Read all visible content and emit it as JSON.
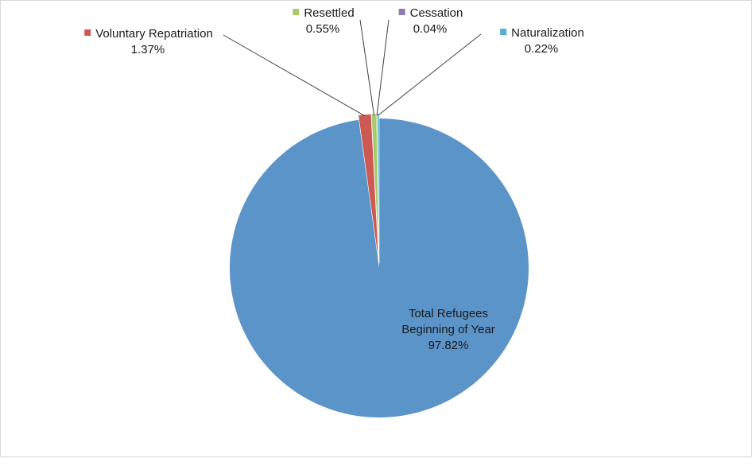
{
  "chart_data": {
    "type": "pie",
    "title": "",
    "start_angle_deg": 0,
    "direction": "counterclockwise",
    "slices": [
      {
        "label": "Total Refugees Beginning of Year",
        "label_lines": [
          "Total Refugees",
          "Beginning of Year"
        ],
        "value": 97.82,
        "value_label": "97.82%",
        "color": "#5b94c9",
        "exploded": false,
        "legend_marker": false
      },
      {
        "label": "Voluntary Repatriation",
        "label_lines": [
          "Voluntary Repatriation"
        ],
        "value": 1.37,
        "value_label": "1.37%",
        "color": "#cd5955",
        "exploded": true,
        "legend_marker": true
      },
      {
        "label": "Resettled",
        "label_lines": [
          "Resettled"
        ],
        "value": 0.55,
        "value_label": "0.55%",
        "color": "#a7c96a",
        "exploded": true,
        "legend_marker": true
      },
      {
        "label": "Cessation",
        "label_lines": [
          "Cessation"
        ],
        "value": 0.04,
        "value_label": "0.04%",
        "color": "#8e78b3",
        "exploded": true,
        "legend_marker": true
      },
      {
        "label": "Naturalization",
        "label_lines": [
          "Naturalization"
        ],
        "value": 0.22,
        "value_label": "0.22%",
        "color": "#4fb3cf",
        "exploded": true,
        "legend_marker": true
      }
    ]
  }
}
